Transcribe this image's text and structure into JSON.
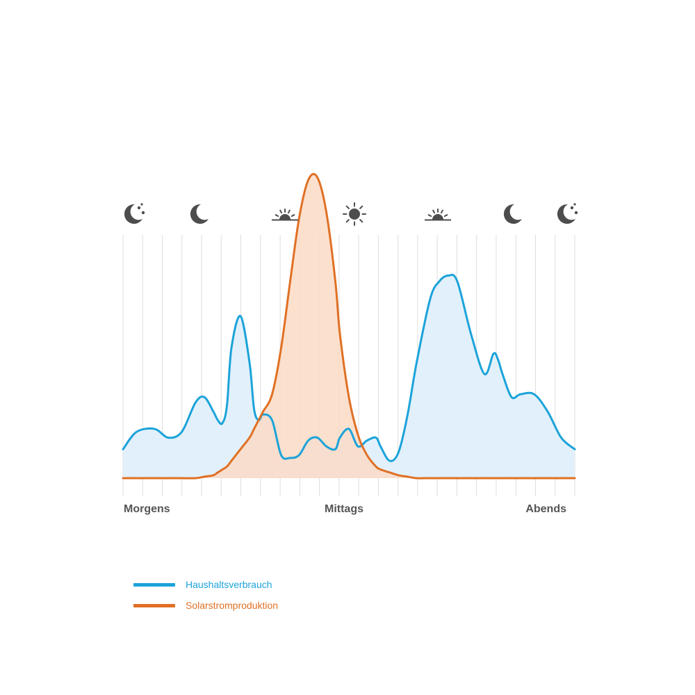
{
  "chart_data": {
    "type": "area",
    "title": "",
    "xlabel": "",
    "ylabel": "",
    "x_tick_labels": [
      "Morgens",
      "Mittags",
      "Abends"
    ],
    "x_icons": [
      "moon-stars-icon",
      "moon-icon",
      "sunrise-icon",
      "sun-icon",
      "sunset-icon",
      "moon-icon",
      "moon-stars-icon"
    ],
    "grid": true,
    "legend": "bottom-left",
    "x": [
      0,
      3,
      7,
      10,
      13,
      16,
      18,
      20,
      21,
      22,
      23,
      24,
      26,
      28,
      29,
      30,
      31,
      33,
      35,
      37,
      39,
      41,
      43,
      45,
      47,
      48,
      50,
      52,
      54,
      56,
      57,
      59,
      61,
      63,
      65,
      68,
      70,
      72,
      74,
      77,
      80,
      82,
      83,
      84,
      86,
      88,
      91,
      94,
      97,
      100
    ],
    "series": [
      {
        "name": "Haushaltsverbrauch",
        "color": "#1ba3d9",
        "values": [
          10,
          16,
          17,
          14,
          16,
          26,
          28,
          23,
          20,
          19,
          25,
          45,
          56,
          40,
          24,
          20,
          22,
          20,
          8,
          7,
          8,
          13,
          14,
          11,
          10,
          14,
          17,
          11,
          13,
          14,
          11,
          6,
          9,
          22,
          40,
          62,
          68,
          70,
          68,
          50,
          36,
          43,
          41,
          36,
          28,
          29,
          29,
          23,
          14,
          10
        ]
      },
      {
        "name": "Solarstromproduktion",
        "color": "#e07024",
        "values": [
          0,
          0,
          0,
          0,
          0,
          0,
          0.5,
          1,
          2,
          3,
          4,
          6,
          10,
          14,
          17,
          20,
          23,
          29,
          45,
          68,
          90,
          103,
          104,
          92,
          68,
          50,
          28,
          15,
          8,
          4,
          3,
          2,
          1,
          0.5,
          0,
          0,
          0,
          0,
          0,
          0,
          0,
          0,
          0,
          0,
          0,
          0,
          0,
          0,
          0,
          0
        ]
      }
    ],
    "xlim": [
      0,
      100
    ],
    "ylim": [
      0,
      110
    ]
  },
  "colors": {
    "consumption_fill": "#e2f0fb",
    "solar_fill": "#fbdbc6",
    "grid": "#dddddd",
    "icons": "#4d4d4d",
    "axis_text": "#555555"
  }
}
